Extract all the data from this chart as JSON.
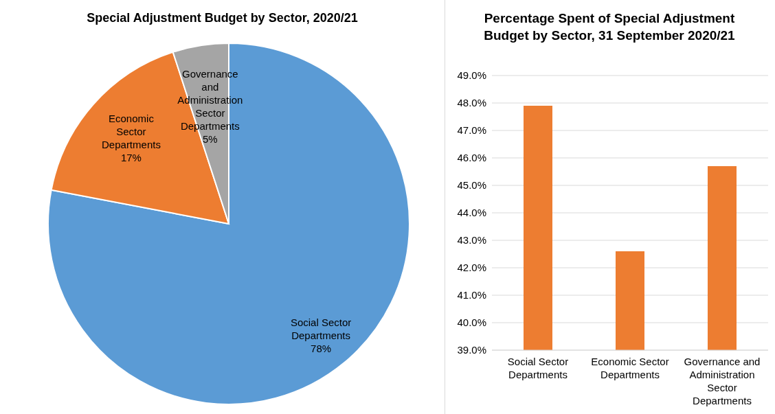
{
  "chart_data": [
    {
      "type": "pie",
      "title": "Special Adjustment Budget by Sector, 2020/21",
      "categories": [
        "Social Sector Departments",
        "Economic Sector Departments",
        "Governance and Administration Sector Departments"
      ],
      "values": [
        78,
        17,
        5
      ],
      "colors": [
        "#5b9bd5",
        "#ed7d31",
        "#a5a5a5"
      ],
      "value_labels": [
        "78%",
        "17%",
        "5%"
      ]
    },
    {
      "type": "bar",
      "title": "Percentage Spent of Special Adjustment Budget by Sector, 31 September 2020/21",
      "categories": [
        "Social Sector Departments",
        "Economic Sector Departments",
        "Governance and Administration Sector Departments"
      ],
      "values": [
        47.9,
        42.6,
        45.7
      ],
      "color": "#ed7d31",
      "ylim": [
        39,
        49
      ],
      "yticks": [
        {
          "value": 39,
          "label": "39.0%"
        },
        {
          "value": 40,
          "label": "40.0%"
        },
        {
          "value": 41,
          "label": "41.0%"
        },
        {
          "value": 42,
          "label": "42.0%"
        },
        {
          "value": 43,
          "label": "43.0%"
        },
        {
          "value": 44,
          "label": "44.0%"
        },
        {
          "value": 45,
          "label": "45.0%"
        },
        {
          "value": 46,
          "label": "46.0%"
        },
        {
          "value": 47,
          "label": "47.0%"
        },
        {
          "value": 48,
          "label": "48.0%"
        },
        {
          "value": 49,
          "label": "49.0%"
        }
      ],
      "grid": "y",
      "legend": false
    }
  ]
}
